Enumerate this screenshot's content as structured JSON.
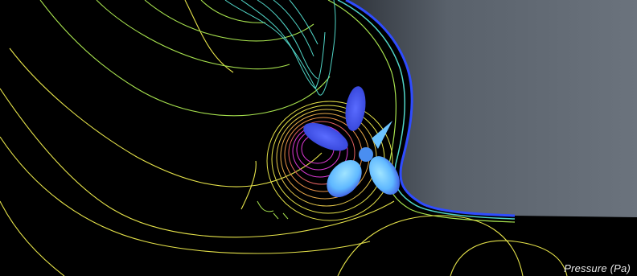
{
  "legend": {
    "label": "Pressure (Pa)"
  },
  "colors": {
    "background": "#000000",
    "hull": "#5a626d",
    "hull_edge": "#8a929c",
    "contour_yellow": "#e6e34a",
    "contour_green": "#a7e24e",
    "contour_cyan": "#51d6c8",
    "contour_blue": "#2f4cff",
    "contour_magenta": "#e03ad8",
    "propeller_light": "#7ad0ff",
    "propeller_dark": "#4050e8"
  }
}
